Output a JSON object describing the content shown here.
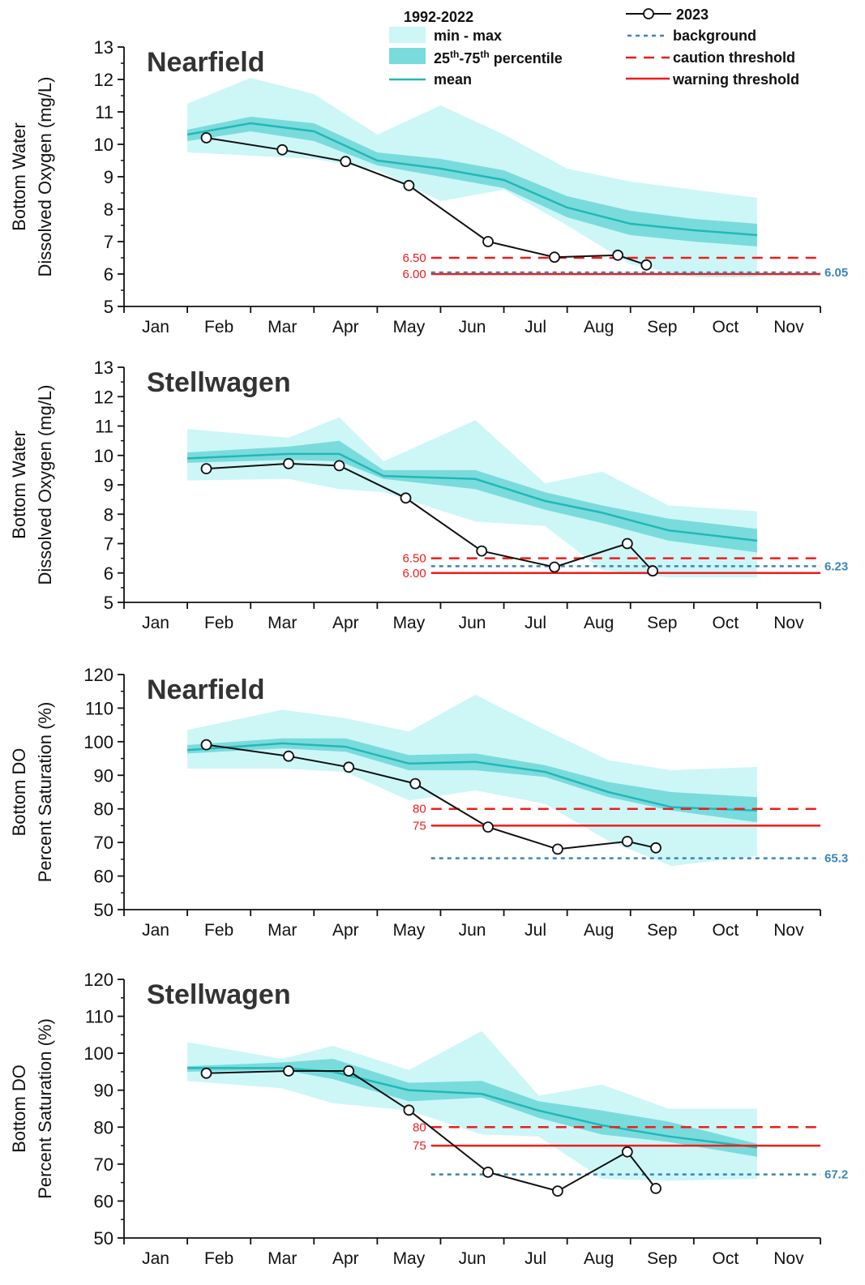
{
  "legend": {
    "hist_header": "1992-2022",
    "minmax": "min - max",
    "pct_pre": "25",
    "pct_sup1": "th",
    "pct_mid": "-75",
    "pct_sup2": "th",
    "pct_post": " percentile",
    "mean": "mean",
    "current": "2023",
    "background": "background",
    "caution": "caution threshold",
    "warning": "warning threshold"
  },
  "colors": {
    "minmax": "#cdf6f7",
    "iqr": "#7adbdc",
    "mean": "#21b8b8",
    "current": "#111111",
    "background": "#3b84b8",
    "caution": "#ee1c1c",
    "warning": "#ee1c1c"
  },
  "chart_data": [
    {
      "type": "line",
      "title": "Nearfield",
      "ylabel": [
        "Bottom Water",
        "Dissolved Oxygen (mg/L)"
      ],
      "xlabel": "",
      "x_tick_labels": [
        "Jan",
        "Feb",
        "Mar",
        "Apr",
        "May",
        "Jun",
        "Jul",
        "Aug",
        "Sep",
        "Oct",
        "Nov"
      ],
      "xlim": [
        0,
        11
      ],
      "ylim": [
        5,
        13
      ],
      "y_ticks": [
        5,
        6,
        7,
        8,
        9,
        10,
        11,
        12,
        13
      ],
      "y_minor_step": 0.5,
      "hist_x": [
        1.0,
        2.0,
        3.0,
        4.0,
        5.0,
        6.0,
        7.0,
        8.0,
        9.0,
        10.0
      ],
      "min": [
        9.75,
        9.65,
        9.55,
        9.2,
        8.25,
        8.6,
        7.5,
        6.3,
        5.9,
        5.9
      ],
      "max": [
        11.25,
        12.05,
        11.55,
        10.3,
        11.2,
        10.3,
        9.25,
        8.85,
        8.6,
        8.35
      ],
      "p25": [
        10.1,
        10.4,
        10.1,
        9.35,
        9.0,
        8.65,
        7.75,
        7.2,
        7.0,
        6.85
      ],
      "p75": [
        10.45,
        10.85,
        10.65,
        9.75,
        9.55,
        9.2,
        8.4,
        7.95,
        7.7,
        7.55
      ],
      "mean": [
        10.3,
        10.65,
        10.4,
        9.5,
        9.25,
        8.9,
        8.05,
        7.55,
        7.35,
        7.2
      ],
      "current_x": [
        1.3,
        2.5,
        3.5,
        4.5,
        5.75,
        6.8,
        7.8,
        8.25
      ],
      "current": [
        10.2,
        9.83,
        9.47,
        8.73,
        7.0,
        6.52,
        6.58,
        6.28
      ],
      "caution": 6.5,
      "warning": 6.0,
      "background": 6.05,
      "caution_label": "6.50",
      "warning_label": "6.00",
      "background_label": "6.05"
    },
    {
      "type": "line",
      "title": "Stellwagen",
      "ylabel": [
        "Bottom Water",
        "Dissolved Oxygen (mg/L)"
      ],
      "xlabel": "",
      "x_tick_labels": [
        "Jan",
        "Feb",
        "Mar",
        "Apr",
        "May",
        "Jun",
        "Jul",
        "Aug",
        "Sep",
        "Oct",
        "Nov"
      ],
      "xlim": [
        0,
        11
      ],
      "ylim": [
        5,
        13
      ],
      "y_ticks": [
        5,
        6,
        7,
        8,
        9,
        10,
        11,
        12,
        13
      ],
      "y_minor_step": 0.5,
      "hist_x": [
        1.0,
        2.6,
        3.4,
        4.1,
        5.55,
        6.65,
        7.55,
        8.6,
        10.0
      ],
      "min": [
        9.15,
        9.2,
        8.85,
        8.75,
        7.75,
        7.6,
        6.1,
        5.85,
        5.85
      ],
      "max": [
        10.9,
        10.6,
        11.3,
        9.8,
        11.2,
        9.05,
        9.45,
        8.3,
        8.1
      ],
      "p25": [
        9.75,
        9.85,
        9.8,
        9.2,
        8.85,
        8.15,
        7.7,
        7.1,
        6.7
      ],
      "p75": [
        10.1,
        10.3,
        10.5,
        9.5,
        9.5,
        8.75,
        8.3,
        7.85,
        7.5
      ],
      "mean": [
        9.9,
        10.05,
        10.05,
        9.3,
        9.2,
        8.45,
        8.05,
        7.45,
        7.1
      ],
      "current_x": [
        1.3,
        2.6,
        3.4,
        4.45,
        5.65,
        6.8,
        7.95,
        8.35
      ],
      "current": [
        9.55,
        9.72,
        9.65,
        8.55,
        6.75,
        6.2,
        7.0,
        6.07
      ],
      "caution": 6.5,
      "warning": 6.0,
      "background": 6.23,
      "caution_label": "6.50",
      "warning_label": "6.00",
      "background_label": "6.23"
    },
    {
      "type": "line",
      "title": "Nearfield",
      "ylabel": [
        "Bottom DO",
        "Percent Saturation (%)"
      ],
      "xlabel": "",
      "x_tick_labels": [
        "Jan",
        "Feb",
        "Mar",
        "Apr",
        "May",
        "Jun",
        "Jul",
        "Aug",
        "Sep",
        "Oct",
        "Nov"
      ],
      "xlim": [
        0,
        11
      ],
      "ylim": [
        50,
        120
      ],
      "y_ticks": [
        50,
        60,
        70,
        80,
        90,
        100,
        110,
        120
      ],
      "y_minor_step": 5,
      "hist_x": [
        1.0,
        2.5,
        3.5,
        4.5,
        5.55,
        6.65,
        7.65,
        8.65,
        10.0
      ],
      "min": [
        92,
        92,
        91,
        82.5,
        85.5,
        81.5,
        70.5,
        63,
        66
      ],
      "max": [
        103.5,
        109.5,
        107,
        103,
        114,
        103.5,
        94.5,
        91.5,
        92.5
      ],
      "p25": [
        96.5,
        98,
        97,
        91.5,
        91.5,
        89.5,
        83.5,
        79.5,
        76
      ],
      "p75": [
        99,
        101,
        101,
        96,
        96.5,
        93,
        88,
        85,
        83.5
      ],
      "mean": [
        97.5,
        99.5,
        98.5,
        93.5,
        94,
        91,
        85,
        80.5,
        79.5
      ],
      "current_x": [
        1.3,
        2.6,
        3.55,
        4.6,
        5.75,
        6.85,
        7.95,
        8.4
      ],
      "current": [
        99.1,
        95.7,
        92.4,
        87.5,
        74.6,
        68.0,
        70.3,
        68.4
      ],
      "caution": 80,
      "warning": 75,
      "background": 65.3,
      "caution_label": "80",
      "warning_label": "75",
      "background_label": "65.3"
    },
    {
      "type": "line",
      "title": "Stellwagen",
      "ylabel": [
        "Bottom DO",
        "Percent Saturation (%)"
      ],
      "xlabel": "",
      "x_tick_labels": [
        "Jan",
        "Feb",
        "Mar",
        "Apr",
        "May",
        "Jun",
        "Jul",
        "Aug",
        "Sep",
        "Oct",
        "Nov"
      ],
      "xlim": [
        0,
        11
      ],
      "ylim": [
        50,
        120
      ],
      "y_ticks": [
        50,
        60,
        70,
        80,
        90,
        100,
        110,
        120
      ],
      "y_minor_step": 5,
      "hist_x": [
        1.0,
        2.5,
        3.3,
        4.5,
        5.65,
        6.55,
        7.55,
        8.6,
        10.0
      ],
      "min": [
        92.5,
        90.5,
        86.5,
        84.5,
        78,
        77.5,
        66,
        65.5,
        66
      ],
      "max": [
        103,
        98.5,
        102,
        95.5,
        106,
        88.5,
        91.5,
        85,
        85
      ],
      "p25": [
        95,
        95.5,
        93,
        87,
        88,
        82.5,
        78,
        76,
        72
      ],
      "p75": [
        96.5,
        97.5,
        98.5,
        92,
        92.5,
        87,
        84.5,
        81.5,
        75.5
      ],
      "mean": [
        96,
        96,
        95,
        90,
        89,
        84.5,
        80.5,
        77.5,
        74.5
      ],
      "current_x": [
        1.3,
        2.6,
        3.55,
        4.5,
        5.75,
        6.85,
        7.95,
        8.4
      ],
      "current": [
        94.6,
        95.2,
        95.2,
        84.6,
        67.8,
        62.7,
        73.3,
        63.4
      ],
      "caution": 80,
      "warning": 75,
      "background": 67.2,
      "caution_label": "80",
      "warning_label": "75",
      "background_label": "67.2"
    }
  ]
}
